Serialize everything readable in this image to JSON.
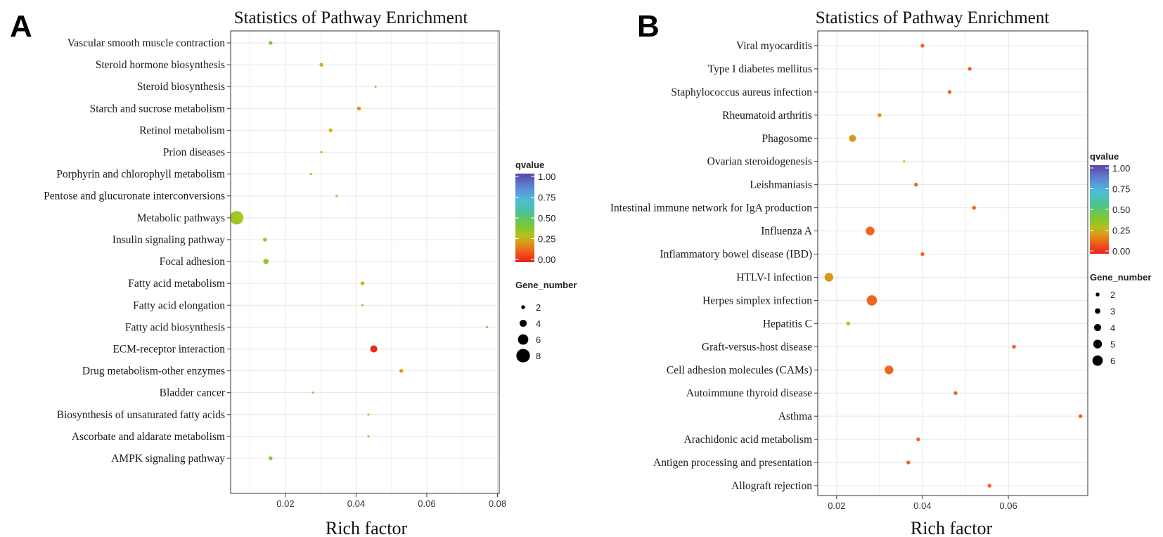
{
  "chart_data": [
    {
      "panel": "A",
      "type": "scatter",
      "title": "Statistics of Pathway Enrichment",
      "xlabel": "Rich factor",
      "ylabel": "",
      "xlim": [
        0.0045,
        0.0805
      ],
      "xticks": [
        0.02,
        0.04,
        0.06,
        0.08
      ],
      "xtick_labels": [
        "0.02",
        "0.04",
        "0.06",
        "0.08"
      ],
      "categories": [
        "Vascular smooth muscle contraction",
        "Steroid hormone biosynthesis",
        "Steroid biosynthesis",
        "Starch and sucrose metabolism",
        "Retinol metabolism",
        "Prion diseases",
        "Porphyrin and chlorophyll metabolism",
        "Pentose and glucuronate interconversions",
        "Metabolic pathways",
        "Insulin signaling pathway",
        "Focal adhesion",
        "Fatty acid metabolism",
        "Fatty acid elongation",
        "Fatty acid biosynthesis",
        "ECM-receptor interaction",
        "Drug metabolism-other enzymes",
        "Bladder cancer",
        "Biosynthesis of unsaturated fatty acids",
        "Ascorbate and aldarate metabolism",
        "AMPK signaling pathway"
      ],
      "points": [
        {
          "category": "Vascular smooth muscle contraction",
          "rich_factor": 0.0158,
          "gene_number": 2,
          "qvalue": 0.38
        },
        {
          "category": "Steroid hormone biosynthesis",
          "rich_factor": 0.0302,
          "gene_number": 2,
          "qvalue": 0.25
        },
        {
          "category": "Steroid biosynthesis",
          "rich_factor": 0.0455,
          "gene_number": 1,
          "qvalue": 0.32
        },
        {
          "category": "Starch and sucrose metabolism",
          "rich_factor": 0.0408,
          "gene_number": 2,
          "qvalue": 0.2
        },
        {
          "category": "Retinol metabolism",
          "rich_factor": 0.0328,
          "gene_number": 2,
          "qvalue": 0.25
        },
        {
          "category": "Prion diseases",
          "rich_factor": 0.0302,
          "gene_number": 1,
          "qvalue": 0.33
        },
        {
          "category": "Porphyrin and chlorophyll metabolism",
          "rich_factor": 0.0272,
          "gene_number": 1,
          "qvalue": 0.33
        },
        {
          "category": "Pentose and glucuronate interconversions",
          "rich_factor": 0.0345,
          "gene_number": 1,
          "qvalue": 0.33
        },
        {
          "category": "Metabolic pathways",
          "rich_factor": 0.0062,
          "gene_number": 8,
          "qvalue": 0.33
        },
        {
          "category": "Insulin signaling pathway",
          "rich_factor": 0.0142,
          "gene_number": 2,
          "qvalue": 0.36
        },
        {
          "category": "Focal adhesion",
          "rich_factor": 0.0145,
          "gene_number": 3,
          "qvalue": 0.36
        },
        {
          "category": "Fatty acid metabolism",
          "rich_factor": 0.0418,
          "gene_number": 2,
          "qvalue": 0.25
        },
        {
          "category": "Fatty acid elongation",
          "rich_factor": 0.0418,
          "gene_number": 1,
          "qvalue": 0.33
        },
        {
          "category": "Fatty acid biosynthesis",
          "rich_factor": 0.077,
          "gene_number": 1,
          "qvalue": 0.33
        },
        {
          "category": "ECM-receptor interaction",
          "rich_factor": 0.045,
          "gene_number": 4,
          "qvalue": 0.02
        },
        {
          "category": "Drug metabolism-other enzymes",
          "rich_factor": 0.0528,
          "gene_number": 2,
          "qvalue": 0.22
        },
        {
          "category": "Bladder cancer",
          "rich_factor": 0.0278,
          "gene_number": 1,
          "qvalue": 0.33
        },
        {
          "category": "Biosynthesis of unsaturated fatty acids",
          "rich_factor": 0.0435,
          "gene_number": 1,
          "qvalue": 0.27
        },
        {
          "category": "Ascorbate and aldarate metabolism",
          "rich_factor": 0.0435,
          "gene_number": 1,
          "qvalue": 0.27
        },
        {
          "category": "AMPK signaling pathway",
          "rich_factor": 0.0158,
          "gene_number": 2,
          "qvalue": 0.38
        }
      ],
      "legend_color": {
        "title": "qvalue",
        "ticks": [
          "1.00",
          "0.75",
          "0.50",
          "0.25",
          "0.00"
        ]
      },
      "legend_size": {
        "title": "Gene_number",
        "values": [
          2,
          4,
          6,
          8
        ],
        "labels": [
          "2",
          "4",
          "6",
          "8"
        ]
      }
    },
    {
      "panel": "B",
      "type": "scatter",
      "title": "Statistics of Pathway Enrichment",
      "xlabel": "Rich factor",
      "ylabel": "",
      "xlim": [
        0.0156,
        0.0785
      ],
      "xticks": [
        0.02,
        0.04,
        0.06
      ],
      "xtick_labels": [
        "0.02",
        "0.04",
        "0.06"
      ],
      "categories": [
        "Viral myocarditis",
        "Type I diabetes mellitus",
        "Staphylococcus aureus infection",
        "Rheumatoid arthritis",
        "Phagosome",
        "Ovarian steroidogenesis",
        "Leishmaniasis",
        "Intestinal immune network for IgA production",
        "Influenza A",
        "Inflammatory bowel disease (IBD)",
        "HTLV-I infection",
        "Herpes simplex infection",
        "Hepatitis C",
        "Graft-versus-host disease",
        "Cell adhesion molecules (CAMs)",
        "Autoimmune thyroid disease",
        "Asthma",
        "Arachidonic acid metabolism",
        "Antigen processing and presentation",
        "Allograft rejection"
      ],
      "points": [
        {
          "category": "Viral myocarditis",
          "rich_factor": 0.04,
          "gene_number": 2,
          "qvalue": 0.15
        },
        {
          "category": "Type I diabetes mellitus",
          "rich_factor": 0.051,
          "gene_number": 2,
          "qvalue": 0.14
        },
        {
          "category": "Staphylococcus aureus infection",
          "rich_factor": 0.0463,
          "gene_number": 2,
          "qvalue": 0.14
        },
        {
          "category": "Rheumatoid arthritis",
          "rich_factor": 0.03,
          "gene_number": 2,
          "qvalue": 0.2
        },
        {
          "category": "Phagosome",
          "rich_factor": 0.0237,
          "gene_number": 4,
          "qvalue": 0.2
        },
        {
          "category": "Ovarian steroidogenesis",
          "rich_factor": 0.0357,
          "gene_number": 1,
          "qvalue": 0.27
        },
        {
          "category": "Leishmaniasis",
          "rich_factor": 0.0385,
          "gene_number": 2,
          "qvalue": 0.14
        },
        {
          "category": "Intestinal immune network for IgA production",
          "rich_factor": 0.052,
          "gene_number": 2,
          "qvalue": 0.14
        },
        {
          "category": "Influenza A",
          "rich_factor": 0.0278,
          "gene_number": 5,
          "qvalue": 0.14
        },
        {
          "category": "Inflammatory bowel disease (IBD)",
          "rich_factor": 0.04,
          "gene_number": 2,
          "qvalue": 0.15
        },
        {
          "category": "HTLV-I infection",
          "rich_factor": 0.0182,
          "gene_number": 5,
          "qvalue": 0.2
        },
        {
          "category": "Herpes simplex infection",
          "rich_factor": 0.0282,
          "gene_number": 6,
          "qvalue": 0.14
        },
        {
          "category": "Hepatitis C",
          "rich_factor": 0.0227,
          "gene_number": 2,
          "qvalue": 0.3
        },
        {
          "category": "Graft-versus-host disease",
          "rich_factor": 0.0613,
          "gene_number": 2,
          "qvalue": 0.14
        },
        {
          "category": "Cell adhesion molecules (CAMs)",
          "rich_factor": 0.0322,
          "gene_number": 5,
          "qvalue": 0.14
        },
        {
          "category": "Autoimmune thyroid disease",
          "rich_factor": 0.0477,
          "gene_number": 2,
          "qvalue": 0.14
        },
        {
          "category": "Asthma",
          "rich_factor": 0.0768,
          "gene_number": 2,
          "qvalue": 0.14
        },
        {
          "category": "Arachidonic acid metabolism",
          "rich_factor": 0.039,
          "gene_number": 2,
          "qvalue": 0.14
        },
        {
          "category": "Antigen processing and presentation",
          "rich_factor": 0.0367,
          "gene_number": 2,
          "qvalue": 0.14
        },
        {
          "category": "Allograft rejection",
          "rich_factor": 0.0556,
          "gene_number": 2,
          "qvalue": 0.14
        }
      ],
      "legend_color": {
        "title": "qvalue",
        "ticks": [
          "1.00",
          "0.75",
          "0.50",
          "0.25",
          "0.00"
        ]
      },
      "legend_size": {
        "title": "Gene_number",
        "values": [
          2,
          3,
          4,
          5,
          6
        ],
        "labels": [
          "2",
          "3",
          "4",
          "5",
          "6"
        ]
      }
    }
  ]
}
